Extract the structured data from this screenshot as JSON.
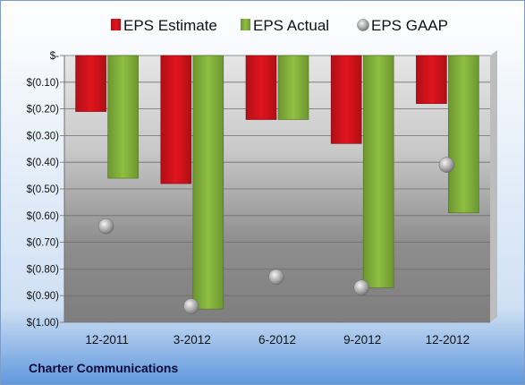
{
  "chart_data": {
    "type": "bar",
    "title": "",
    "xlabel": "",
    "ylabel": "",
    "categories": [
      "12-2011",
      "3-2012",
      "6-2012",
      "9-2012",
      "12-2012"
    ],
    "series": [
      {
        "name": "EPS Estimate",
        "kind": "bar",
        "color": "#d8141b",
        "values": [
          -0.21,
          -0.48,
          -0.24,
          -0.33,
          -0.18
        ]
      },
      {
        "name": "EPS Actual",
        "kind": "bar",
        "color": "#86b43c",
        "values": [
          -0.46,
          -0.95,
          -0.24,
          -0.87,
          -0.59
        ]
      },
      {
        "name": "EPS GAAP",
        "kind": "marker",
        "color": "#9a9a9a",
        "values": [
          -0.64,
          -0.94,
          -0.83,
          -0.87,
          -0.41
        ]
      }
    ],
    "ylim": [
      -1.0,
      0.0
    ],
    "yticks": [
      0,
      -0.1,
      -0.2,
      -0.3,
      -0.4,
      -0.5,
      -0.6,
      -0.7,
      -0.8,
      -0.9,
      -1.0
    ],
    "ytick_labels": [
      "$-",
      "$(0.10)",
      "$(0.20)",
      "$(0.30)",
      "$(0.40)",
      "$(0.50)",
      "$(0.60)",
      "$(0.70)",
      "$(0.80)",
      "$(0.90)",
      "$(1.00)"
    ],
    "grid": true,
    "legend_position": "top"
  },
  "footer": {
    "company": "Charter Communications"
  }
}
